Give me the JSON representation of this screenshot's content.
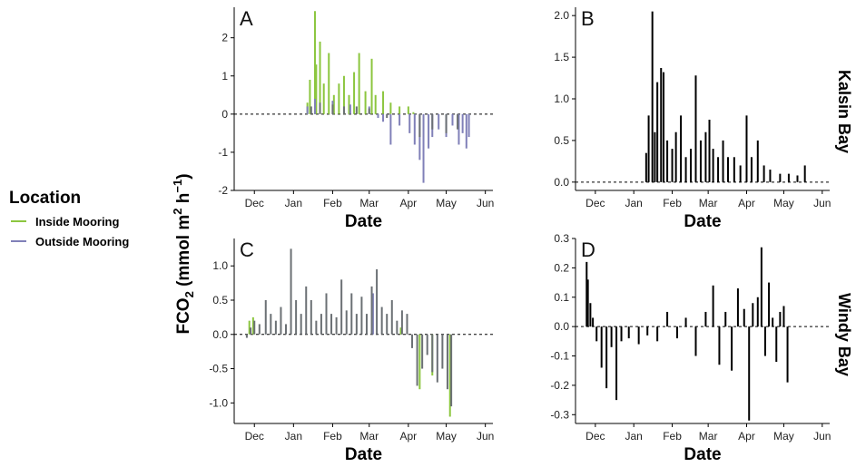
{
  "legend": {
    "title": "Location",
    "items": [
      {
        "label": "Inside Mooring",
        "color": "#8cc63f"
      },
      {
        "label": "Outside Mooring",
        "color": "#8080b8"
      }
    ]
  },
  "y_axis_label": {
    "base": "FCO",
    "sub": "2",
    "rest": " (mmol m",
    "sup1": "2",
    "mid": " h",
    "sup2": "−1",
    "end": ")"
  },
  "site_labels": {
    "top": "Kalsin Bay",
    "bottom": "Windy Bay"
  },
  "colors": {
    "overlap": "#6b7074",
    "black": "#000000"
  },
  "chart_data": [
    {
      "panel": "A",
      "site": "Kalsin Bay",
      "type": "bar",
      "xlabel": "Date",
      "x_ticks": [
        "Dec",
        "Jan",
        "Feb",
        "Mar",
        "Apr",
        "May",
        "Jun"
      ],
      "x_range": [
        "2015-11-15",
        "2016-06-07"
      ],
      "ylim": [
        -2,
        2.8
      ],
      "y_ticks": [
        "2",
        "1",
        "0",
        "-1",
        "-2"
      ],
      "series": [
        {
          "name": "Inside Mooring",
          "color": "#8cc63f",
          "x": [
            "2016-01-12",
            "2016-01-14",
            "2016-01-18",
            "2016-01-19",
            "2016-01-22",
            "2016-01-25",
            "2016-01-29",
            "2016-02-02",
            "2016-02-06",
            "2016-02-10",
            "2016-02-14",
            "2016-02-18",
            "2016-02-22",
            "2016-02-27",
            "2016-03-03",
            "2016-03-06",
            "2016-03-12",
            "2016-03-18",
            "2016-03-25",
            "2016-04-01",
            "2016-04-05"
          ],
          "values": [
            0.3,
            0.9,
            2.7,
            1.3,
            1.9,
            0.8,
            1.6,
            0.5,
            0.8,
            1.0,
            0.5,
            1.1,
            1.6,
            0.6,
            1.45,
            0.5,
            0.6,
            0.3,
            0.2,
            0.2,
            0.05
          ]
        },
        {
          "name": "Outside Mooring",
          "color": "#8080b8",
          "x": [
            "2016-01-12",
            "2016-01-18",
            "2016-02-01",
            "2016-02-15",
            "2016-03-01",
            "2016-03-08",
            "2016-03-12",
            "2016-03-18",
            "2016-03-25",
            "2016-04-02",
            "2016-04-06",
            "2016-04-10",
            "2016-04-13",
            "2016-04-17",
            "2016-04-20",
            "2016-04-25",
            "2016-05-01",
            "2016-05-06",
            "2016-05-11",
            "2016-05-14",
            "2016-05-17",
            "2016-05-19"
          ],
          "values": [
            0.2,
            0.4,
            0.35,
            0.25,
            0.2,
            -0.1,
            -0.2,
            -0.8,
            -0.3,
            -0.5,
            -0.8,
            -1.2,
            -1.8,
            -0.9,
            -0.6,
            -0.4,
            -0.6,
            -0.3,
            -0.8,
            -0.5,
            -0.9,
            -0.6
          ]
        },
        {
          "name": "",
          "color": "#6b7074",
          "x": [
            "2016-01-15",
            "2016-01-22",
            "2016-02-01",
            "2016-02-10",
            "2016-02-20",
            "2016-03-01",
            "2016-03-15",
            "2016-04-10",
            "2016-04-20",
            "2016-05-01",
            "2016-05-10"
          ],
          "values": [
            0.2,
            0.3,
            0.25,
            0.2,
            0.2,
            0.15,
            -0.1,
            -0.6,
            -0.4,
            -0.5,
            -0.4
          ]
        }
      ]
    },
    {
      "panel": "B",
      "site": "Kalsin Bay",
      "type": "bar",
      "xlabel": "Date",
      "x_ticks": [
        "Dec",
        "Jan",
        "Feb",
        "Mar",
        "Apr",
        "May",
        "Jun"
      ],
      "x_range": [
        "2015-11-15",
        "2016-06-07"
      ],
      "ylim": [
        -0.1,
        2.1
      ],
      "y_ticks": [
        "2.0",
        "1.5",
        "1.0",
        "0.5",
        "0.0"
      ],
      "series": [
        {
          "name": "",
          "color": "#000000",
          "x": [
            "2016-01-11",
            "2016-01-13",
            "2016-01-16",
            "2016-01-18",
            "2016-01-20",
            "2016-01-23",
            "2016-01-25",
            "2016-01-28",
            "2016-02-01",
            "2016-02-04",
            "2016-02-08",
            "2016-02-12",
            "2016-02-16",
            "2016-02-20",
            "2016-02-24",
            "2016-02-28",
            "2016-03-02",
            "2016-03-05",
            "2016-03-09",
            "2016-03-13",
            "2016-03-17",
            "2016-03-22",
            "2016-03-27",
            "2016-04-01",
            "2016-04-05",
            "2016-04-10",
            "2016-04-15",
            "2016-04-20",
            "2016-04-28",
            "2016-05-05",
            "2016-05-12",
            "2016-05-18"
          ],
          "values": [
            0.35,
            0.8,
            2.05,
            0.6,
            1.2,
            1.37,
            1.32,
            0.5,
            0.4,
            0.6,
            0.8,
            0.3,
            0.4,
            1.28,
            0.5,
            0.6,
            0.75,
            0.4,
            0.3,
            0.5,
            0.3,
            0.3,
            0.2,
            0.8,
            0.3,
            0.5,
            0.2,
            0.15,
            0.1,
            0.1,
            0.08,
            0.2
          ]
        }
      ]
    },
    {
      "panel": "C",
      "site": "Windy Bay",
      "type": "bar",
      "xlabel": "Date",
      "x_ticks": [
        "Dec",
        "Jan",
        "Feb",
        "Mar",
        "Apr",
        "May",
        "Jun"
      ],
      "x_range": [
        "2015-11-15",
        "2016-06-07"
      ],
      "ylim": [
        -1.3,
        1.4
      ],
      "y_ticks": [
        "1.0",
        "0.5",
        "0.0",
        "-0.5",
        "-1.0"
      ],
      "series": [
        {
          "name": "Inside Mooring",
          "color": "#8cc63f",
          "x": [
            "2015-11-27",
            "2015-11-30",
            "2016-03-26",
            "2016-04-10",
            "2016-04-20",
            "2016-05-04"
          ],
          "values": [
            0.2,
            0.25,
            0.1,
            -0.8,
            -0.6,
            -1.2
          ]
        },
        {
          "name": "Outside Mooring",
          "color": "#8080b8",
          "x": [
            "2016-03-04"
          ],
          "values": [
            0.6
          ]
        },
        {
          "name": "",
          "color": "#6b7074",
          "x": [
            "2015-11-25",
            "2015-11-28",
            "2015-12-01",
            "2015-12-05",
            "2015-12-10",
            "2015-12-14",
            "2015-12-18",
            "2015-12-22",
            "2015-12-26",
            "2015-12-30",
            "2016-01-03",
            "2016-01-07",
            "2016-01-11",
            "2016-01-15",
            "2016-01-19",
            "2016-01-23",
            "2016-01-27",
            "2016-01-31",
            "2016-02-04",
            "2016-02-08",
            "2016-02-12",
            "2016-02-16",
            "2016-02-20",
            "2016-02-24",
            "2016-02-28",
            "2016-03-03",
            "2016-03-07",
            "2016-03-11",
            "2016-03-15",
            "2016-03-19",
            "2016-03-23",
            "2016-03-27",
            "2016-03-31",
            "2016-04-04",
            "2016-04-08",
            "2016-04-12",
            "2016-04-16",
            "2016-04-20",
            "2016-04-24",
            "2016-04-28",
            "2016-05-02",
            "2016-05-05"
          ],
          "values": [
            -0.05,
            0.1,
            0.2,
            0.15,
            0.5,
            0.3,
            0.2,
            0.4,
            0.15,
            1.25,
            0.5,
            0.3,
            0.7,
            0.5,
            0.2,
            0.3,
            0.6,
            0.3,
            0.25,
            0.8,
            0.35,
            0.6,
            0.3,
            0.55,
            0.3,
            0.7,
            0.95,
            0.4,
            0.3,
            0.5,
            0.2,
            0.35,
            0.3,
            -0.2,
            -0.75,
            -0.5,
            -0.3,
            -0.55,
            -0.7,
            -0.5,
            -0.8,
            -1.05
          ]
        }
      ]
    },
    {
      "panel": "D",
      "site": "Windy Bay",
      "type": "bar",
      "xlabel": "Date",
      "x_ticks": [
        "Dec",
        "Jan",
        "Feb",
        "Mar",
        "Apr",
        "May",
        "Jun"
      ],
      "x_range": [
        "2015-11-15",
        "2016-06-07"
      ],
      "ylim": [
        -0.33,
        0.3
      ],
      "y_ticks": [
        "0.3",
        "0.2",
        "0.1",
        "0.0",
        "-0.1",
        "-0.2",
        "-0.3"
      ],
      "series": [
        {
          "name": "",
          "color": "#000000",
          "x": [
            "2015-11-24",
            "2015-11-25",
            "2015-11-27",
            "2015-11-29",
            "2015-12-02",
            "2015-12-06",
            "2015-12-10",
            "2015-12-14",
            "2015-12-18",
            "2015-12-22",
            "2015-12-28",
            "2016-01-05",
            "2016-01-12",
            "2016-01-20",
            "2016-01-28",
            "2016-02-05",
            "2016-02-12",
            "2016-02-20",
            "2016-02-28",
            "2016-03-05",
            "2016-03-10",
            "2016-03-15",
            "2016-03-20",
            "2016-03-25",
            "2016-03-30",
            "2016-04-03",
            "2016-04-06",
            "2016-04-10",
            "2016-04-13",
            "2016-04-16",
            "2016-04-19",
            "2016-04-22",
            "2016-04-25",
            "2016-04-28",
            "2016-05-01",
            "2016-05-04"
          ],
          "values": [
            0.22,
            0.16,
            0.08,
            0.03,
            -0.05,
            -0.14,
            -0.21,
            -0.07,
            -0.25,
            -0.05,
            -0.04,
            -0.06,
            -0.03,
            -0.05,
            0.05,
            -0.04,
            0.03,
            -0.1,
            0.05,
            0.14,
            -0.13,
            0.05,
            -0.15,
            0.13,
            0.06,
            -0.32,
            0.08,
            0.1,
            0.27,
            -0.1,
            0.15,
            0.03,
            -0.12,
            0.05,
            0.07,
            -0.19
          ]
        }
      ]
    }
  ]
}
